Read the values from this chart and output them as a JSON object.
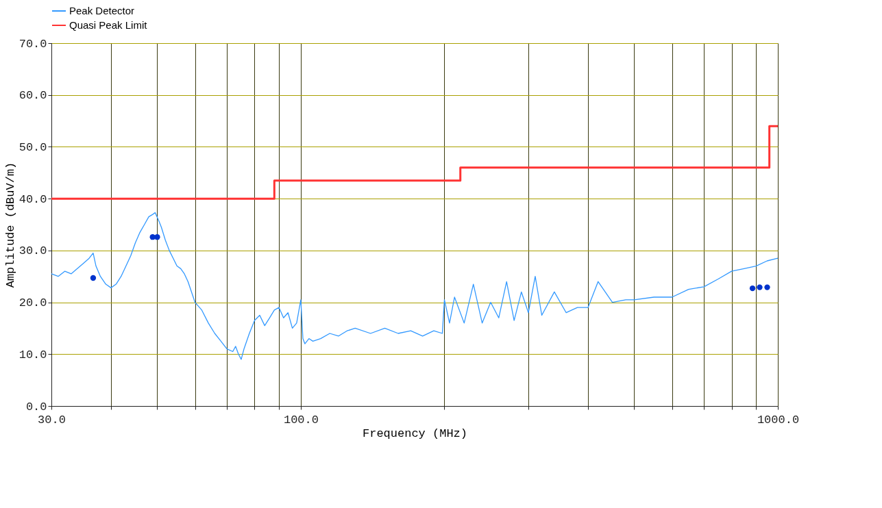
{
  "chart_data": {
    "type": "line",
    "xlabel": "Frequency (MHz)",
    "ylabel": "Amplitude (dBuV/m)",
    "log": "x",
    "grid": true,
    "legend": "top left",
    "xlim": [
      30,
      1000
    ],
    "xticks": [
      {
        "value": 30,
        "label": "30.0"
      },
      {
        "value": 40,
        "label": null
      },
      {
        "value": 50,
        "label": null
      },
      {
        "value": 60,
        "label": null
      },
      {
        "value": 70,
        "label": null
      },
      {
        "value": 80,
        "label": null
      },
      {
        "value": 90,
        "label": null
      },
      {
        "value": 100,
        "label": "100.0"
      },
      {
        "value": 200,
        "label": null
      },
      {
        "value": 300,
        "label": null
      },
      {
        "value": 400,
        "label": null
      },
      {
        "value": 500,
        "label": null
      },
      {
        "value": 600,
        "label": null
      },
      {
        "value": 700,
        "label": null
      },
      {
        "value": 800,
        "label": null
      },
      {
        "value": 900,
        "label": null
      },
      {
        "value": 1000,
        "label": "1000.0"
      }
    ],
    "ylim": [
      0,
      70
    ],
    "yticks": [
      {
        "value": 0,
        "label": "0.0"
      },
      {
        "value": 10,
        "label": "10.0"
      },
      {
        "value": 20,
        "label": "20.0"
      },
      {
        "value": 30,
        "label": "30.0"
      },
      {
        "value": 40,
        "label": "40.0"
      },
      {
        "value": 50,
        "label": "50.0"
      },
      {
        "value": 60,
        "label": "60.0"
      },
      {
        "value": 70,
        "label": "70.0"
      }
    ],
    "series": [
      {
        "name": "Peak Detector",
        "color": "#3399ff",
        "x": [
          30,
          31,
          32,
          33,
          34,
          35,
          36,
          36.7,
          37.2,
          38,
          39,
          40,
          41,
          42,
          43,
          44,
          45,
          46,
          47,
          48,
          49,
          49.5,
          50.5,
          51,
          52,
          53,
          54,
          55,
          56,
          57,
          58,
          59,
          60,
          62,
          64,
          66,
          68,
          70,
          72,
          73,
          74,
          75,
          76,
          78,
          80,
          82,
          84,
          86,
          88,
          90,
          92,
          94,
          96,
          98,
          100,
          101,
          102,
          104,
          106,
          110,
          115,
          120,
          125,
          130,
          140,
          150,
          160,
          170,
          180,
          190,
          198,
          200,
          205,
          210,
          220,
          230,
          240,
          250,
          260,
          270,
          280,
          290,
          300,
          310,
          320,
          340,
          360,
          380,
          400,
          420,
          450,
          480,
          500,
          550,
          600,
          650,
          700,
          750,
          800,
          850,
          900,
          950,
          1000
        ],
        "values": [
          25.5,
          25,
          26,
          25.5,
          26.5,
          27.5,
          28.5,
          29.5,
          27,
          25,
          23.5,
          22.8,
          23.5,
          25,
          27,
          29,
          31.5,
          33.5,
          35,
          36.5,
          37,
          37.3,
          35.5,
          34.5,
          32,
          30,
          28.5,
          27,
          26.5,
          25.5,
          24,
          22,
          20,
          18.5,
          16,
          14,
          12.5,
          11,
          10.5,
          11.5,
          10,
          9,
          11,
          14,
          16.5,
          17.5,
          15.5,
          17,
          18.5,
          19,
          17,
          18,
          15,
          16,
          20.5,
          13,
          12,
          13,
          12.5,
          13,
          14,
          13.5,
          14.5,
          15,
          14,
          15,
          14,
          14.5,
          13.5,
          14.5,
          14,
          20.5,
          16,
          21,
          16,
          23.5,
          16,
          20,
          17,
          24,
          16.5,
          22,
          18,
          25,
          17.5,
          22,
          18,
          19,
          19,
          24,
          20,
          20.5,
          20.5,
          21,
          21,
          22.5,
          23,
          24.5,
          26,
          26.5,
          27,
          28,
          28.5
        ]
      },
      {
        "name": "Quasi Peak Limit",
        "type": "step",
        "color": "#ff3333",
        "x": [
          30,
          88,
          216,
          960,
          1000
        ],
        "values": [
          40,
          43.5,
          46,
          54,
          54
        ]
      },
      {
        "type": "scatter",
        "marker": "circle",
        "color": "#0033cc",
        "x": [
          36.7,
          48.9,
          50,
          885,
          916,
          950
        ],
        "values": [
          24.7,
          32.6,
          32.6,
          22.7,
          22.9,
          22.9
        ]
      }
    ]
  }
}
